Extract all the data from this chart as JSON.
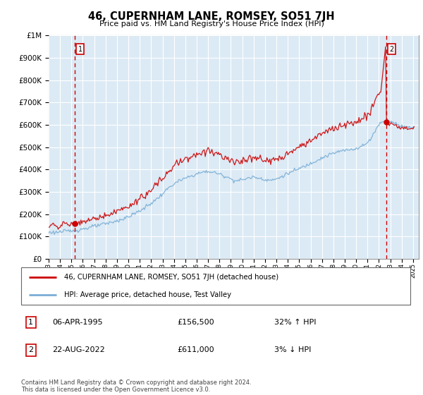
{
  "title": "46, CUPERNHAM LANE, ROMSEY, SO51 7JH",
  "subtitle": "Price paid vs. HM Land Registry's House Price Index (HPI)",
  "legend_line1": "46, CUPERNHAM LANE, ROMSEY, SO51 7JH (detached house)",
  "legend_line2": "HPI: Average price, detached house, Test Valley",
  "annotation1_label": "1",
  "annotation1_date": "06-APR-1995",
  "annotation1_price": "£156,500",
  "annotation1_hpi": "32% ↑ HPI",
  "annotation2_label": "2",
  "annotation2_date": "22-AUG-2022",
  "annotation2_price": "£611,000",
  "annotation2_hpi": "3% ↓ HPI",
  "footer": "Contains HM Land Registry data © Crown copyright and database right 2024.\nThis data is licensed under the Open Government Licence v3.0.",
  "price_color": "#cc0000",
  "hpi_color": "#7aaed6",
  "plot_bg": "#dceaf5",
  "outer_bg": "#d0d0d0",
  "grid_color": "#ffffff",
  "marker1_x": 1995.27,
  "marker1_y": 156500,
  "marker2_x": 2022.64,
  "marker2_y": 611000,
  "ylim_min": 0,
  "ylim_max": 1000000,
  "xlim_min": 1993.0,
  "xlim_max": 2025.5,
  "yticks": [
    0,
    100000,
    200000,
    300000,
    400000,
    500000,
    600000,
    700000,
    800000,
    900000,
    1000000
  ],
  "xticks": [
    1993,
    1994,
    1995,
    1996,
    1997,
    1998,
    1999,
    2000,
    2001,
    2002,
    2003,
    2004,
    2005,
    2006,
    2007,
    2008,
    2009,
    2010,
    2011,
    2012,
    2013,
    2014,
    2015,
    2016,
    2017,
    2018,
    2019,
    2020,
    2021,
    2022,
    2023,
    2024,
    2025
  ]
}
